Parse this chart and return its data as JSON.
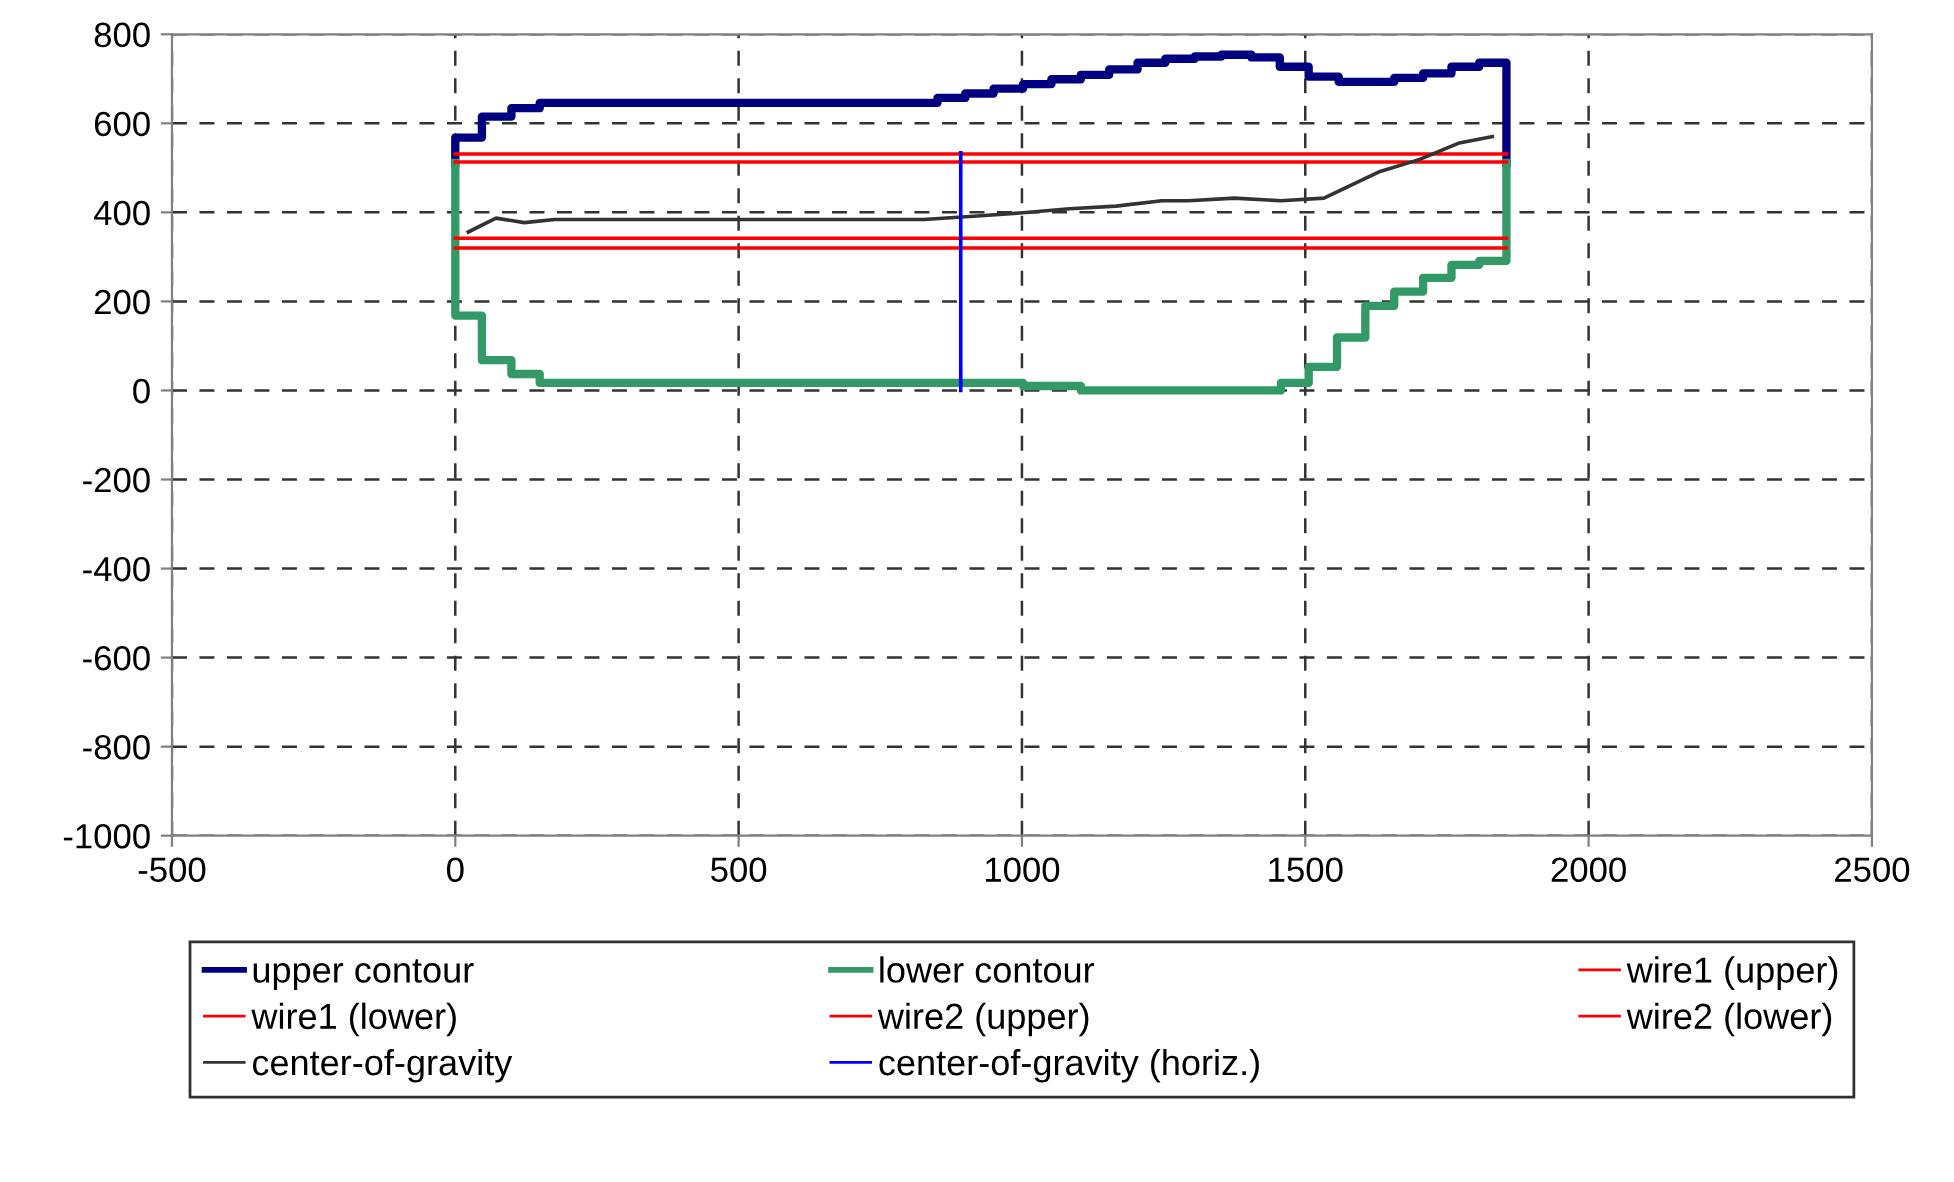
{
  "chart_data": {
    "type": "line",
    "series": [
      {
        "name": "upper contour",
        "type": "step",
        "color": "#000080",
        "x": [
          0,
          0,
          47,
          99,
          149,
          851,
          900,
          950,
          1002,
          1052,
          1104,
          1154,
          1204,
          1253,
          1305,
          1352,
          1405,
          1455,
          1506,
          1559,
          1657,
          1708,
          1758,
          1807,
          1855
        ],
        "values": [
          511,
          568,
          615,
          634,
          646,
          657,
          667,
          678,
          688,
          699,
          709,
          721,
          736,
          745,
          750,
          754,
          748,
          727,
          705,
          693,
          702,
          712,
          727,
          736,
          511
        ]
      },
      {
        "name": "lower contour",
        "type": "step",
        "color": "#339966",
        "x": [
          0,
          0,
          47,
          99,
          149,
          1002,
          1104,
          1457,
          1506,
          1556,
          1606,
          1657,
          1708,
          1758,
          1807,
          1855
        ],
        "values": [
          511,
          168,
          68,
          37,
          17,
          10,
          0,
          17,
          53,
          119,
          190,
          222,
          253,
          282,
          291,
          511
        ]
      },
      {
        "name": "wire1 (upper)",
        "color": "#ff0000",
        "x": [
          0,
          1855
        ],
        "values": [
          531,
          531
        ]
      },
      {
        "name": "wire1 (lower)",
        "color": "#ff0000",
        "x": [
          0,
          1855
        ],
        "values": [
          342,
          342
        ]
      },
      {
        "name": "wire2 (upper)",
        "color": "#ff0000",
        "x": [
          0,
          1855
        ],
        "values": [
          513,
          513
        ]
      },
      {
        "name": "wire2 (lower)",
        "color": "#ff0000",
        "x": [
          0,
          1855
        ],
        "values": [
          320,
          320
        ]
      },
      {
        "name": "center-of-gravity",
        "color": "#333333",
        "x": [
          23,
          72,
          122,
          175,
          827,
          921,
          1002,
          1084,
          1166,
          1247,
          1294,
          1375,
          1457,
          1533,
          1632,
          1702,
          1772,
          1830
        ],
        "values": [
          356,
          387,
          377,
          384,
          384,
          392,
          399,
          408,
          414,
          426,
          426,
          432,
          426,
          432,
          492,
          519,
          556,
          570
        ]
      },
      {
        "name": "center-of-gravity (horiz.)",
        "color": "#0000ff",
        "x": [
          892,
          892
        ],
        "values": [
          0,
          534
        ]
      }
    ],
    "xlim": [
      -500,
      2500
    ],
    "xticks": [
      -500,
      0,
      500,
      1000,
      1500,
      2000,
      2500
    ],
    "ylim": [
      -1000,
      800
    ],
    "yticks": [
      -1000,
      -800,
      -600,
      -400,
      -200,
      0,
      200,
      400,
      600,
      800
    ],
    "grid": true,
    "legend": "bottom",
    "line_style": "solid",
    "marker": "none"
  }
}
